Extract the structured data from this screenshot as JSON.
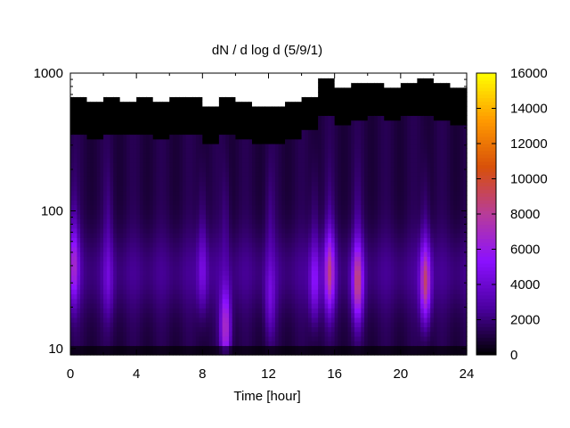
{
  "chart_data": {
    "type": "heatmap",
    "title": "dN / d log d (5/9/1)",
    "xlabel": "Time [hour]",
    "ylabel": "",
    "xlim": [
      0,
      24
    ],
    "ylim": [
      9,
      1000
    ],
    "y_scale": "log",
    "x_ticks": [
      0,
      4,
      8,
      12,
      16,
      20,
      24
    ],
    "x_tick_labels": [
      "0",
      "4",
      "8",
      "12",
      "16",
      "20",
      "24"
    ],
    "y_ticks": [
      10,
      100,
      1000
    ],
    "y_tick_labels": [
      "10",
      "100",
      "1000"
    ],
    "colorbar": {
      "range": [
        0,
        16000
      ],
      "ticks": [
        0,
        2000,
        4000,
        6000,
        8000,
        10000,
        12000,
        14000,
        16000
      ],
      "tick_labels": [
        "0",
        "2000",
        "4000",
        "6000",
        "8000",
        "10000",
        "12000",
        "14000",
        "16000"
      ],
      "colormap": "gnuplot-pm3d-rgb-7-5-15",
      "colors": [
        "#000000",
        "#4b00a0",
        "#8b10ff",
        "#b73c9a",
        "#d8500a",
        "#ff9a00",
        "#ffff00"
      ]
    },
    "data_ceiling_diameter": [
      [
        0,
        650
      ],
      [
        1,
        620
      ],
      [
        2,
        650
      ],
      [
        3,
        640
      ],
      [
        4,
        650
      ],
      [
        5,
        630
      ],
      [
        6,
        650
      ],
      [
        7,
        680
      ],
      [
        8,
        560
      ],
      [
        9,
        650
      ],
      [
        10,
        620
      ],
      [
        11,
        580
      ],
      [
        12,
        560
      ],
      [
        13,
        620
      ],
      [
        14,
        700
      ],
      [
        15,
        900
      ],
      [
        16,
        760
      ],
      [
        17,
        850
      ],
      [
        18,
        870
      ],
      [
        19,
        800
      ],
      [
        20,
        880
      ],
      [
        21,
        900
      ],
      [
        22,
        860
      ],
      [
        23,
        780
      ],
      [
        24,
        850
      ]
    ],
    "event_bands": [
      {
        "time": 0.2,
        "diameter": 40,
        "peak": 5600
      },
      {
        "time": 2.3,
        "diameter": 30,
        "peak": 3000
      },
      {
        "time": 8.0,
        "diameter": 35,
        "peak": 3600
      },
      {
        "time": 9.4,
        "diameter": 14,
        "peak": 7400
      },
      {
        "time": 12.1,
        "diameter": 22,
        "peak": 3600
      },
      {
        "time": 14.8,
        "diameter": 30,
        "peak": 4600
      },
      {
        "time": 15.7,
        "diameter": 35,
        "peak": 7000
      },
      {
        "time": 17.4,
        "diameter": 30,
        "peak": 7600
      },
      {
        "time": 21.5,
        "diameter": 30,
        "peak": 8000
      }
    ]
  }
}
